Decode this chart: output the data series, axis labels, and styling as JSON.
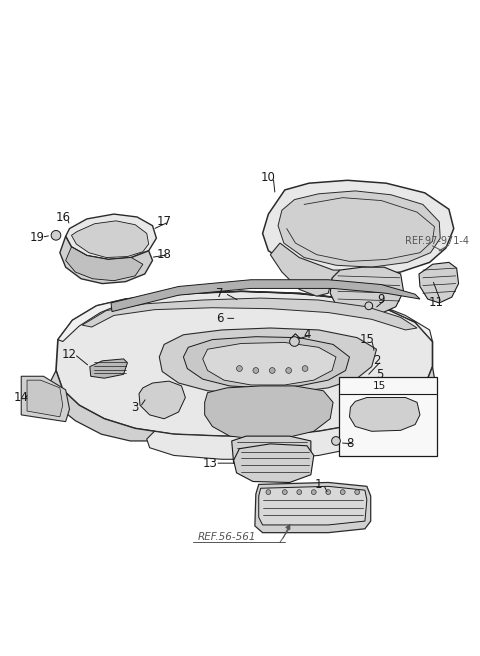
{
  "bg_color": "#ffffff",
  "line_color": "#2a2a2a",
  "label_color": "#1a1a1a",
  "ref_color": "#555555",
  "fig_width": 4.8,
  "fig_height": 6.56,
  "dpi": 100,
  "fill_light": "#e8e8e8",
  "fill_mid": "#d0d0d0",
  "fill_dark": "#b8b8b8"
}
